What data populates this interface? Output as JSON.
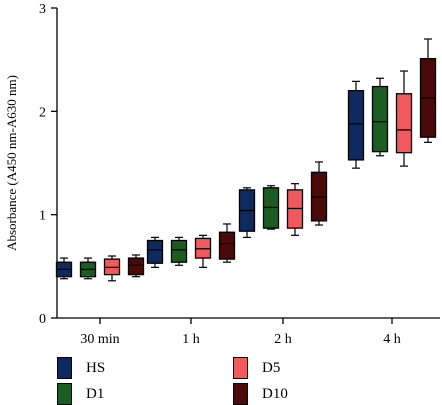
{
  "chart_data": {
    "type": "box",
    "title": "",
    "xlabel": "",
    "ylabel": "Absorbance (A450 nm-A630 nm)",
    "ylim": [
      0,
      3
    ],
    "yticks": [
      0,
      1,
      2,
      3
    ],
    "categories": [
      "30 min",
      "1 h",
      "2 h",
      "4 h"
    ],
    "legend_position": "bottom",
    "series": [
      {
        "name": "HS",
        "color": "#0e2a5e",
        "boxes": [
          {
            "min": 0.38,
            "q1": 0.4,
            "median": 0.47,
            "q3": 0.54,
            "max": 0.58
          },
          {
            "min": 0.49,
            "q1": 0.53,
            "median": 0.66,
            "q3": 0.75,
            "max": 0.78
          },
          {
            "min": 0.78,
            "q1": 0.84,
            "median": 1.04,
            "q3": 1.24,
            "max": 1.26
          },
          {
            "min": 1.45,
            "q1": 1.53,
            "median": 1.88,
            "q3": 2.2,
            "max": 2.29
          }
        ]
      },
      {
        "name": "D1",
        "color": "#1a5c22",
        "boxes": [
          {
            "min": 0.38,
            "q1": 0.4,
            "median": 0.47,
            "q3": 0.54,
            "max": 0.58
          },
          {
            "min": 0.51,
            "q1": 0.54,
            "median": 0.66,
            "q3": 0.75,
            "max": 0.78
          },
          {
            "min": 0.86,
            "q1": 0.87,
            "median": 1.07,
            "q3": 1.26,
            "max": 1.28
          },
          {
            "min": 1.57,
            "q1": 1.61,
            "median": 1.9,
            "q3": 2.24,
            "max": 2.32
          }
        ]
      },
      {
        "name": "D5",
        "color": "#f05a5e",
        "boxes": [
          {
            "min": 0.36,
            "q1": 0.42,
            "median": 0.49,
            "q3": 0.57,
            "max": 0.6
          },
          {
            "min": 0.49,
            "q1": 0.58,
            "median": 0.67,
            "q3": 0.77,
            "max": 0.8
          },
          {
            "min": 0.8,
            "q1": 0.87,
            "median": 1.06,
            "q3": 1.24,
            "max": 1.3
          },
          {
            "min": 1.47,
            "q1": 1.6,
            "median": 1.82,
            "q3": 2.17,
            "max": 2.39
          }
        ]
      },
      {
        "name": "D10",
        "color": "#4a0a0a",
        "boxes": [
          {
            "min": 0.4,
            "q1": 0.42,
            "median": 0.51,
            "q3": 0.58,
            "max": 0.61
          },
          {
            "min": 0.54,
            "q1": 0.57,
            "median": 0.72,
            "q3": 0.83,
            "max": 0.91
          },
          {
            "min": 0.9,
            "q1": 0.94,
            "median": 1.17,
            "q3": 1.41,
            "max": 1.51
          },
          {
            "min": 1.7,
            "q1": 1.75,
            "median": 2.13,
            "q3": 2.51,
            "max": 2.7
          }
        ]
      }
    ]
  }
}
